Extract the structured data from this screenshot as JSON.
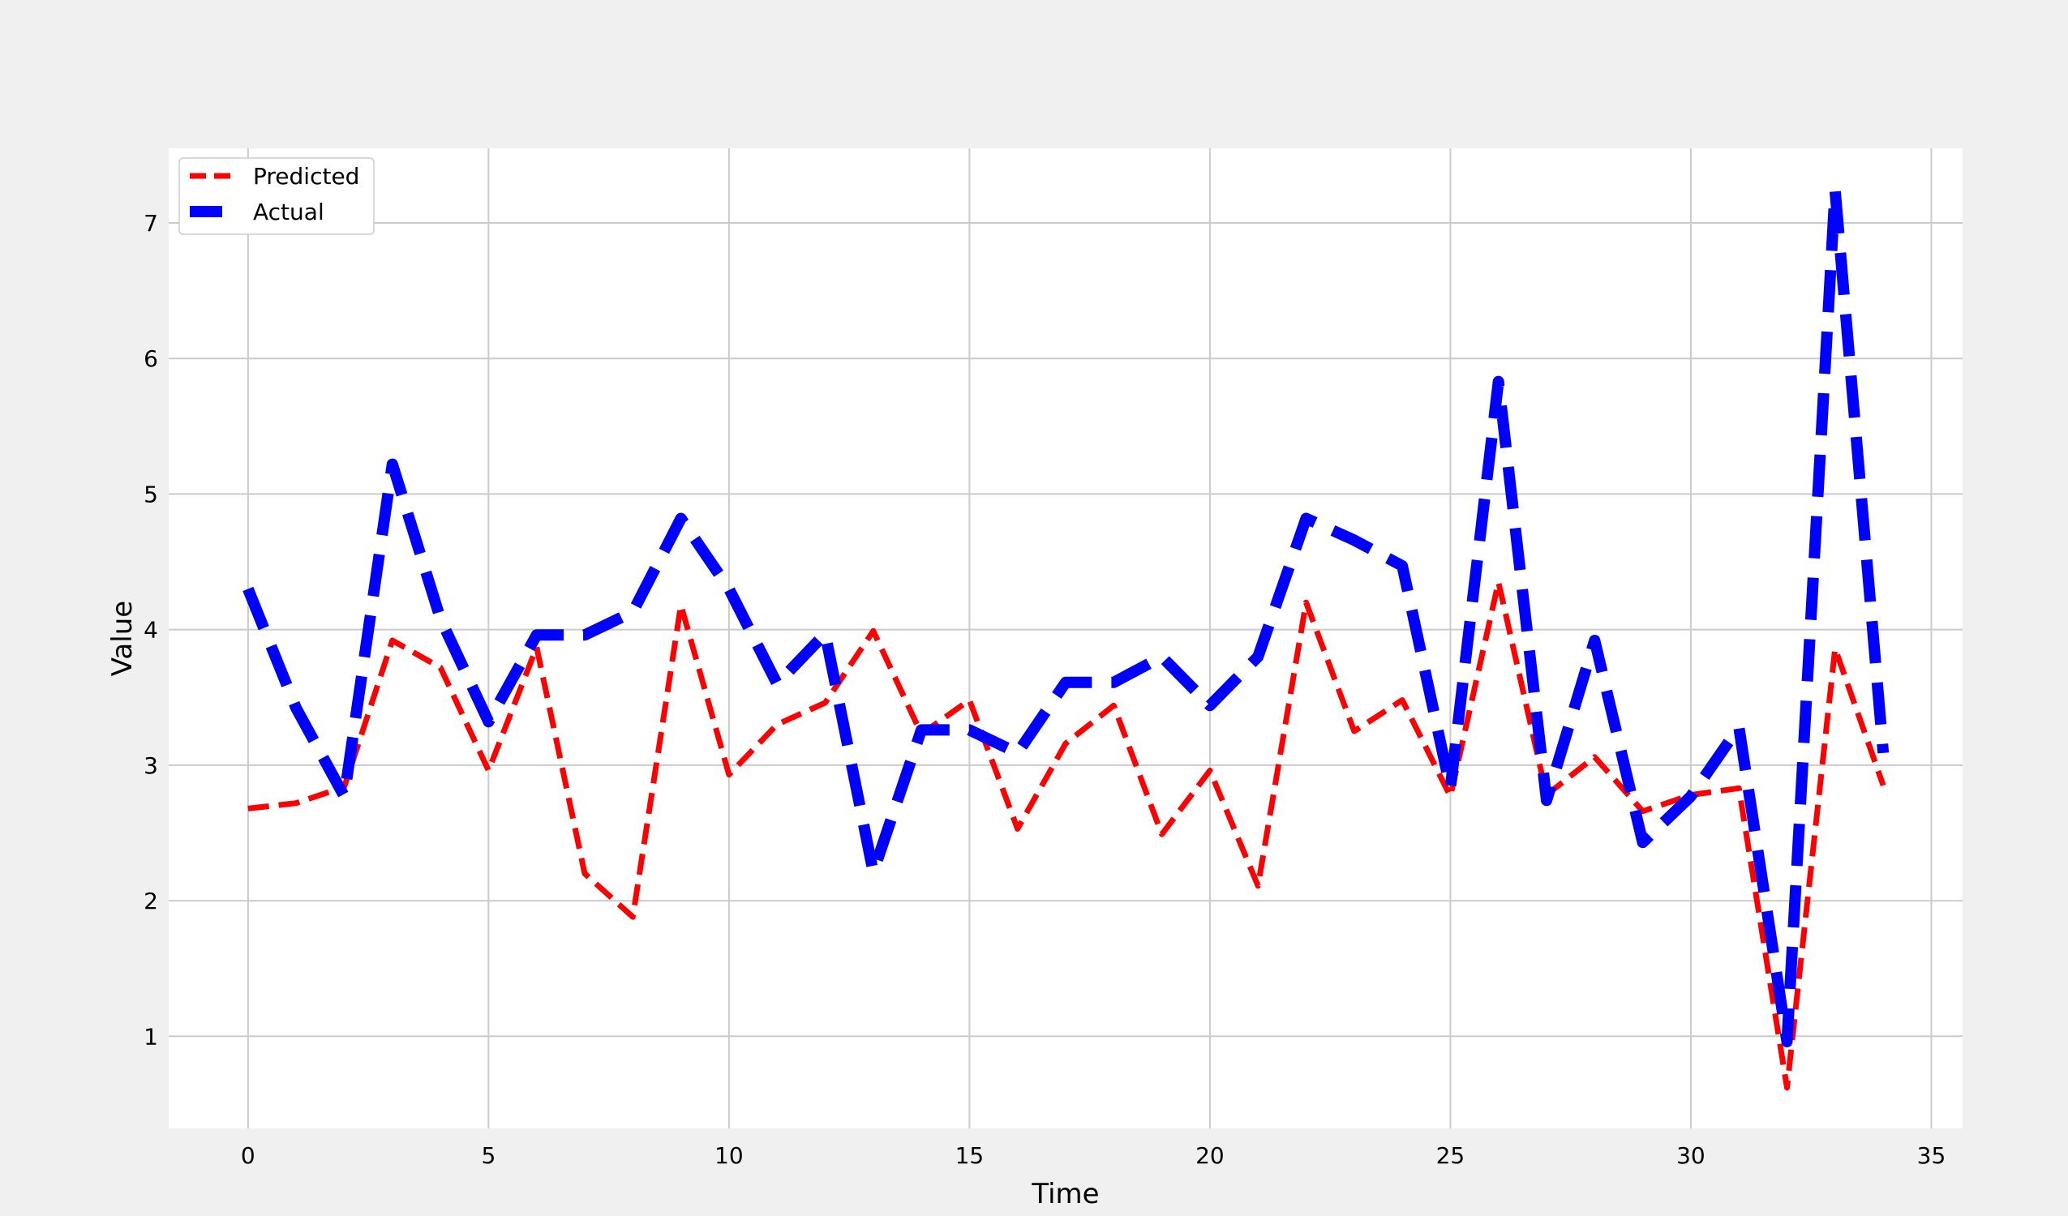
{
  "chart_data": {
    "type": "line",
    "title": "",
    "xlabel": "Time",
    "ylabel": "Value",
    "xlim": [
      -1.65,
      35.65
    ],
    "ylim": [
      0.32,
      7.55
    ],
    "xticks": [
      0,
      5,
      10,
      15,
      20,
      25,
      30,
      35
    ],
    "yticks": [
      1,
      2,
      3,
      4,
      5,
      6,
      7
    ],
    "grid": true,
    "legend_position": "upper-left",
    "x": [
      0,
      1,
      2,
      3,
      4,
      5,
      6,
      7,
      8,
      9,
      10,
      11,
      12,
      13,
      14,
      15,
      16,
      17,
      18,
      19,
      20,
      21,
      22,
      23,
      24,
      25,
      26,
      27,
      28,
      29,
      30,
      31,
      32,
      33,
      34
    ],
    "series": [
      {
        "name": "Predicted",
        "color": "#ff0000",
        "style": "dashed",
        "values": [
          2.68,
          2.72,
          2.84,
          3.92,
          3.72,
          2.96,
          3.87,
          2.2,
          1.88,
          4.18,
          2.93,
          3.3,
          3.46,
          3.99,
          3.23,
          3.48,
          2.53,
          3.16,
          3.44,
          2.49,
          2.96,
          2.11,
          4.2,
          3.25,
          3.48,
          2.77,
          4.35,
          2.78,
          3.06,
          2.66,
          2.78,
          2.83,
          0.62,
          3.86,
          2.85
        ]
      },
      {
        "name": "Actual",
        "color": "#0000ff",
        "style": "dashed",
        "values": [
          4.3,
          3.42,
          2.77,
          5.22,
          4.08,
          3.32,
          3.96,
          3.96,
          4.13,
          4.82,
          4.3,
          3.6,
          3.97,
          2.21,
          3.26,
          3.26,
          3.09,
          3.61,
          3.61,
          3.8,
          3.44,
          3.8,
          4.82,
          4.66,
          4.47,
          2.83,
          5.83,
          2.74,
          3.92,
          2.43,
          2.77,
          3.28,
          0.96,
          7.24,
          3.09
        ]
      }
    ]
  }
}
